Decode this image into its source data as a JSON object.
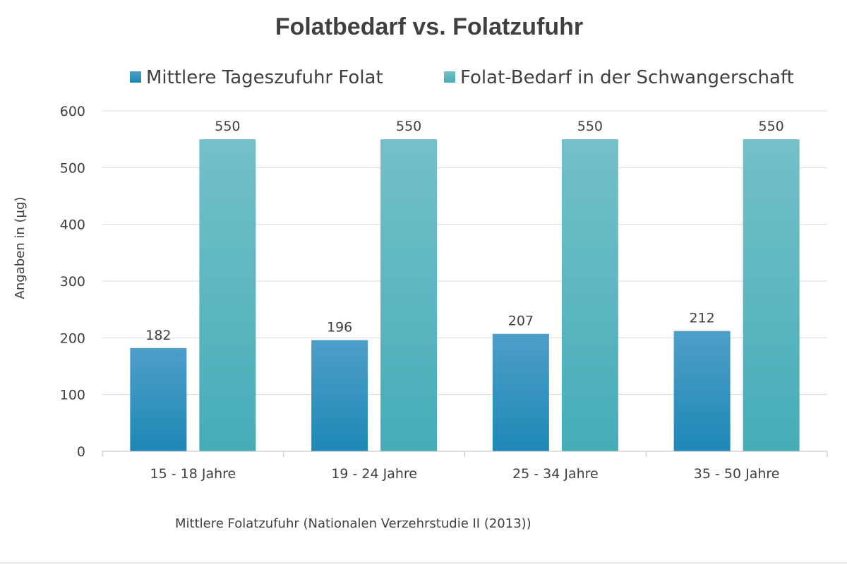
{
  "chart_data": {
    "type": "bar",
    "title": "Folatbedarf vs. Folatzufuhr",
    "xlabel": "Mittlere Folatzufuhr (Nationalen Verzehrstudie II (2013))",
    "ylabel": "Angaben in (µg)",
    "ylim": [
      0,
      600
    ],
    "yticks": [
      0,
      100,
      200,
      300,
      400,
      500,
      600
    ],
    "grid": true,
    "legend_position": "top",
    "categories": [
      "15 - 18 Jahre",
      "19 - 24 Jahre",
      "25 - 34 Jahre",
      "35 - 50 Jahre"
    ],
    "series": [
      {
        "name": "Mittlere Tageszufuhr Folat",
        "values": [
          182,
          196,
          207,
          212
        ],
        "color_top": "#4e9ec9",
        "color_bottom": "#1e88b5"
      },
      {
        "name": "Folat-Bedarf in der Schwangerschaft",
        "values": [
          550,
          550,
          550,
          550
        ],
        "color_top": "#74c0c9",
        "color_bottom": "#45adb8"
      }
    ],
    "colors": {
      "grid": "#d9d9d9",
      "axis": "#bfbfbf",
      "text": "#404040"
    }
  }
}
